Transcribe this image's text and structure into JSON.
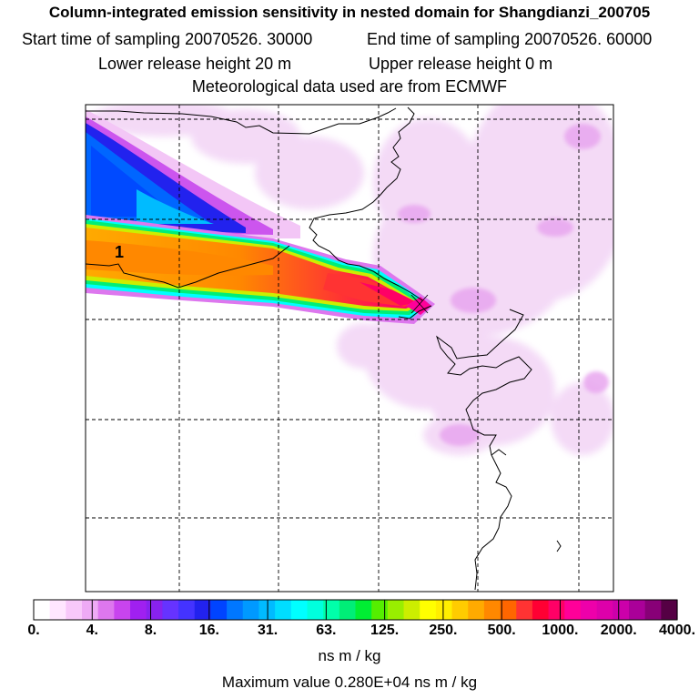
{
  "header": {
    "title": "Column-integrated emission sensitivity in nested domain for Shangdianzi_200705",
    "start_label": "Start time of sampling 20070526. 30000",
    "end_label": "End time of sampling 20070526. 60000",
    "lower_label": "Lower release height   20 m",
    "upper_label": "Upper release height    0 m",
    "met_label": "Meteorological data used are from ECMWF"
  },
  "map": {
    "plume_label": "1",
    "max_color": "#ff0099",
    "coast_color": "#000000",
    "grid_color": "#000000"
  },
  "colorbar": {
    "ticks": [
      "0.",
      "4.",
      "8.",
      "16.",
      "31.",
      "63.",
      "125.",
      "250.",
      "500.",
      "1000.",
      "2000.",
      "4000."
    ],
    "colors": [
      "#ffffff",
      "#ffe6ff",
      "#f8c8fa",
      "#eeaaf5",
      "#dd77ee",
      "#c844ee",
      "#a020f0",
      "#8822ee",
      "#6633ff",
      "#4433ff",
      "#2222ee",
      "#0044ff",
      "#0077ff",
      "#0099ff",
      "#00bbff",
      "#00ddff",
      "#00ffff",
      "#00ffdd",
      "#00ffaa",
      "#00ee77",
      "#00ee33",
      "#55ee00",
      "#99ee00",
      "#ccee00",
      "#ffff00",
      "#ffee00",
      "#ffcc00",
      "#ffaa00",
      "#ff8800",
      "#ff6600",
      "#ff3333",
      "#ff0033",
      "#ff0066",
      "#ff0099",
      "#ee00aa",
      "#dd00aa",
      "#cc00aa",
      "#aa0099",
      "#880077",
      "#550044"
    ],
    "units": "ns m / kg",
    "max_value": "Maximum value  0.280E+04 ns m / kg"
  }
}
